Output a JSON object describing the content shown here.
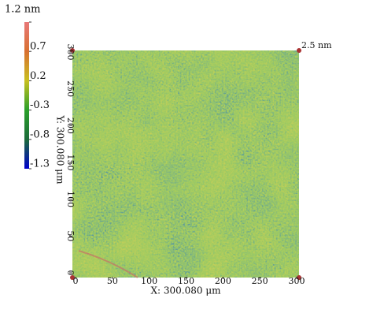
{
  "chart_data": {
    "type": "surface",
    "colorbar": {
      "zlim": [
        -1.3,
        1.2
      ],
      "zticks": [
        {
          "value": 1.2,
          "label": "1.2 nm"
        },
        0.7,
        0.2,
        -0.3,
        -0.8,
        -1.3
      ],
      "colors": [
        "#0000cc",
        "#1b6b3a",
        "#2aa02a",
        "#c8c020",
        "#d87030",
        "#e87878"
      ]
    },
    "xlim": [
      0,
      300
    ],
    "xticks": [
      0,
      50,
      100,
      150,
      200,
      250,
      300
    ],
    "ylim": [
      0,
      300
    ],
    "yticks": [
      0,
      50,
      100,
      150,
      200,
      250,
      300
    ],
    "x_label": "X: 300.080 μm",
    "y_label": "Y: 300.080 μm",
    "annotation": "2.5 nm"
  }
}
